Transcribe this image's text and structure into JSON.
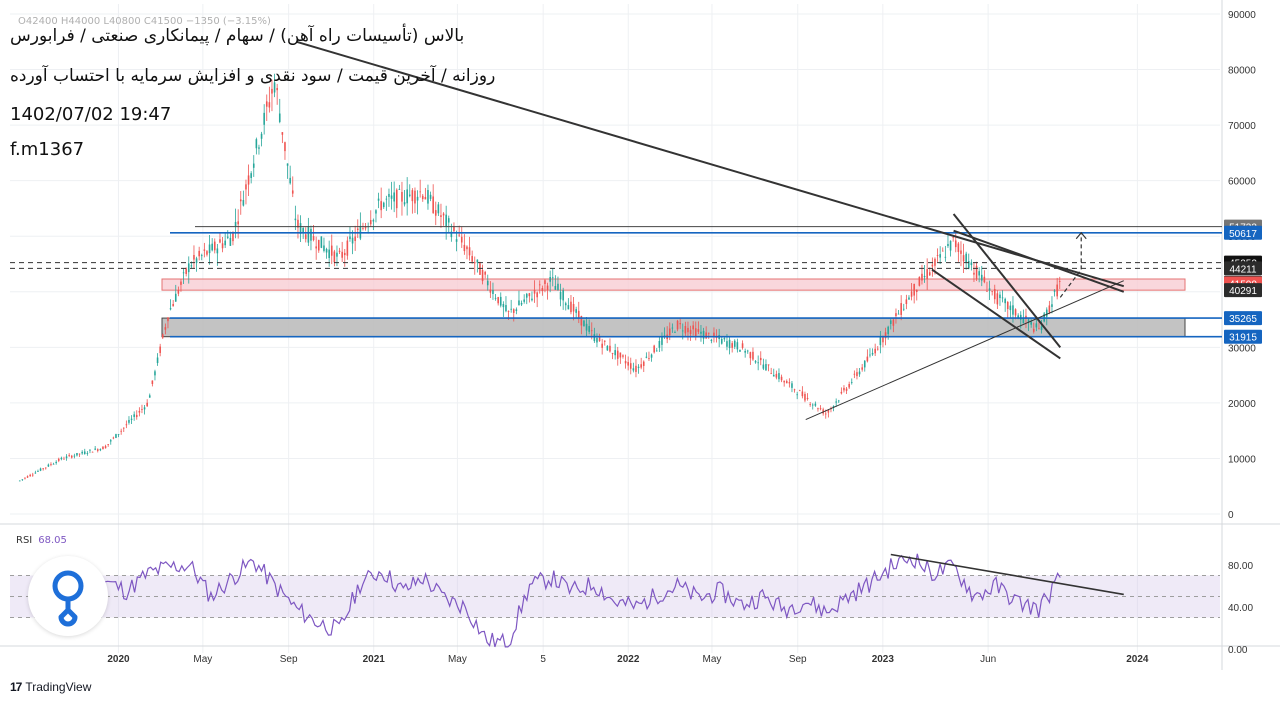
{
  "header": {
    "title_line1": "بالاس (تأسیسات راه آهن) / سهام / پیمانکاری صنعتی / فرابورس",
    "title_line2": "روزانه / آخرین قیمت / سود نقدی و افزایش سرمایه با احتساب آورده",
    "timestamp": "1402/07/02 19:47",
    "author": "f.m1367",
    "legend_faint": "O42400 H44000 L40800 C41500 −1350 (−3.15%)"
  },
  "footer": {
    "brand_mark": "17",
    "brand": "TradingView"
  },
  "colors": {
    "up": "#26a69a",
    "down": "#ef5350",
    "rsi": "#7e57c2",
    "band": "#d1c4e9",
    "blue_line": "#1565c0",
    "dark_line": "#333333",
    "pink_zone": "#f8cdd3",
    "gray_zone": "#bdbdbd"
  },
  "chart_data": [
    {
      "type": "candlestick",
      "scale": "linear",
      "ylim": [
        0,
        90000
      ],
      "y_ticks": [
        0,
        10000,
        20000,
        30000,
        40000,
        50000,
        60000,
        70000,
        80000,
        90000
      ],
      "x_ticks": [
        "2020",
        "May",
        "Sep",
        "2021",
        "May",
        "5",
        "2022",
        "May",
        "Sep",
        "2023",
        "Jun",
        "2024"
      ],
      "grid": true,
      "price_path_approx": [
        {
          "d": "2019-08",
          "v": 6000
        },
        {
          "d": "2019-10",
          "v": 10000
        },
        {
          "d": "2019-12",
          "v": 12000
        },
        {
          "d": "2020-02",
          "v": 20000
        },
        {
          "d": "2020-03",
          "v": 36000
        },
        {
          "d": "2020-04",
          "v": 45000
        },
        {
          "d": "2020-06",
          "v": 50000
        },
        {
          "d": "2020-08",
          "v": 78000
        },
        {
          "d": "2020-09",
          "v": 52000
        },
        {
          "d": "2020-11",
          "v": 46000
        },
        {
          "d": "2021-01",
          "v": 56000
        },
        {
          "d": "2021-03",
          "v": 58000
        },
        {
          "d": "2021-05",
          "v": 48000
        },
        {
          "d": "2021-07",
          "v": 36000
        },
        {
          "d": "2021-09",
          "v": 42000
        },
        {
          "d": "2021-11",
          "v": 32000
        },
        {
          "d": "2022-01",
          "v": 26000
        },
        {
          "d": "2022-03",
          "v": 34000
        },
        {
          "d": "2022-06",
          "v": 30000
        },
        {
          "d": "2022-08",
          "v": 24000
        },
        {
          "d": "2022-10",
          "v": 18000
        },
        {
          "d": "2022-12",
          "v": 28000
        },
        {
          "d": "2023-02",
          "v": 40000
        },
        {
          "d": "2023-04",
          "v": 49000
        },
        {
          "d": "2023-06",
          "v": 39000
        },
        {
          "d": "2023-08",
          "v": 33000
        },
        {
          "d": "2023-09",
          "v": 41500
        }
      ],
      "price_labels": [
        {
          "value": 51733,
          "style": "gray"
        },
        {
          "value": 50617,
          "style": "blue"
        },
        {
          "value": 45252,
          "style": "black"
        },
        {
          "value": 44211,
          "style": "dark"
        },
        {
          "value": 41600,
          "style": "dark"
        },
        {
          "value": 41500,
          "style": "red"
        },
        {
          "value": 40291,
          "style": "dark"
        },
        {
          "value": 35265,
          "style": "blue"
        },
        {
          "value": 31915,
          "style": "blue"
        }
      ],
      "zones": [
        {
          "from": 40291,
          "to": 42300,
          "style": "pink"
        },
        {
          "from": 31915,
          "to": 35265,
          "style": "gray"
        }
      ],
      "horizontal_levels": [
        {
          "value": 50617,
          "style": "blue"
        },
        {
          "value": 51733,
          "style": "dark-thin"
        },
        {
          "value": 45252,
          "style": "dashed"
        },
        {
          "value": 44211,
          "style": "dashed"
        },
        {
          "value": 35265,
          "style": "blue"
        },
        {
          "value": 31915,
          "style": "blue"
        }
      ],
      "trendlines": [
        {
          "from": {
            "d": "2020-09",
            "v": 85000
          },
          "to": {
            "d": "2023-12",
            "v": 41000
          }
        },
        {
          "from": {
            "d": "2022-09",
            "v": 17000
          },
          "to": {
            "d": "2023-12",
            "v": 42000
          }
        },
        {
          "from": {
            "d": "2023-04",
            "v": 54000
          },
          "to": {
            "d": "2023-09",
            "v": 30000
          }
        },
        {
          "from": {
            "d": "2023-03",
            "v": 44000
          },
          "to": {
            "d": "2023-09",
            "v": 28000
          }
        },
        {
          "from": {
            "d": "2023-04",
            "v": 51000
          },
          "to": {
            "d": "2023-12",
            "v": 40000
          }
        }
      ],
      "projection": [
        {
          "d": "2023-09",
          "v": 39000
        },
        {
          "d": "2023-10",
          "v": 44000
        },
        {
          "d": "2023-10",
          "v": 50617
        }
      ]
    },
    {
      "type": "line",
      "indicator": "RSI",
      "label": "RSI",
      "last_value": "68.05",
      "ylim": [
        0,
        100
      ],
      "y_ticks": [
        "80.00",
        "40.00",
        "0.00"
      ],
      "band": [
        30,
        70
      ],
      "mid": 50,
      "x": [
        "2019-09",
        "2019-10",
        "2019-11",
        "2019-12",
        "2020-01",
        "2020-02",
        "2020-03",
        "2020-04",
        "2020-05",
        "2020-06",
        "2020-07",
        "2020-08",
        "2020-09",
        "2020-10",
        "2020-11",
        "2020-12",
        "2021-01",
        "2021-02",
        "2021-03",
        "2021-04",
        "2021-05",
        "2021-06",
        "2021-07",
        "2021-08",
        "2021-09",
        "2021-10",
        "2021-11",
        "2021-12",
        "2022-01",
        "2022-02",
        "2022-03",
        "2022-04",
        "2022-05",
        "2022-06",
        "2022-07",
        "2022-08",
        "2022-09",
        "2022-10",
        "2022-11",
        "2022-12",
        "2023-01",
        "2023-02",
        "2023-03",
        "2023-04",
        "2023-05",
        "2023-06",
        "2023-07",
        "2023-08",
        "2023-09"
      ],
      "values": [
        62,
        70,
        58,
        65,
        55,
        72,
        78,
        80,
        50,
        68,
        84,
        60,
        38,
        25,
        18,
        62,
        75,
        55,
        68,
        48,
        40,
        8,
        6,
        60,
        68,
        55,
        62,
        45,
        40,
        52,
        60,
        48,
        55,
        42,
        50,
        38,
        46,
        35,
        50,
        62,
        78,
        88,
        72,
        78,
        50,
        60,
        45,
        38,
        68
      ],
      "trendline": {
        "from": {
          "d": "2023-01",
          "v": 90
        },
        "to": {
          "d": "2023-12",
          "v": 52
        }
      }
    }
  ]
}
